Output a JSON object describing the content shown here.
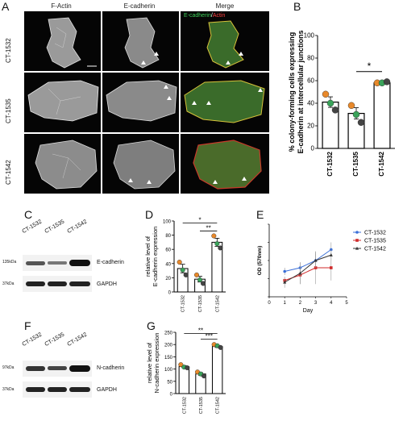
{
  "panels": {
    "A": "A",
    "B": "B",
    "C": "C",
    "D": "D",
    "E": "E",
    "F": "F",
    "G": "G"
  },
  "microscopy": {
    "columns": [
      "F-Actin",
      "E-cadherin",
      "Merge"
    ],
    "rows": [
      "CT-1532",
      "CT-1535",
      "CT-1542"
    ],
    "merge_legend": {
      "green": "E-cadherin",
      "slash": "/",
      "red": "Actin"
    }
  },
  "colors": {
    "orange": "#e8892b",
    "green": "#3aa35a",
    "dark": "#444444",
    "blue": "#3a6fd8",
    "red": "#d02a2a",
    "grey": "#333333"
  },
  "chart_B": {
    "type": "bar",
    "ylabel_line1": "% colony-forming cells expressing",
    "ylabel_line2": "E-cadherin at intercellular junctions",
    "categories": [
      "CT-1532",
      "CT-1535",
      "CT-1542"
    ],
    "values": [
      41,
      31,
      58
    ],
    "points": [
      [
        48,
        40,
        34
      ],
      [
        38,
        30,
        23
      ],
      [
        58,
        58,
        59
      ]
    ],
    "ylim": [
      0,
      100
    ],
    "yticks": [
      "0",
      "20",
      "40",
      "60",
      "80",
      "100"
    ],
    "significance": "*"
  },
  "chart_D": {
    "type": "bar",
    "ylabel_line1": "relative level of",
    "ylabel_line2": "E-cadherin expression",
    "categories": [
      "CT-1532",
      "CT-1535",
      "CT-1542"
    ],
    "values": [
      33,
      18,
      70
    ],
    "points": [
      [
        42,
        31,
        24
      ],
      [
        24,
        17,
        12
      ],
      [
        79,
        68,
        62
      ]
    ],
    "ylim": [
      0,
      100
    ],
    "yticks": [
      "0",
      "20",
      "40",
      "60",
      "80",
      "100"
    ],
    "sig1": "*",
    "sig2": "**"
  },
  "chart_G": {
    "type": "bar",
    "ylabel_line1": "relative level of",
    "ylabel_line2": "N-cadherin expression",
    "categories": [
      "CT-1532",
      "CT-1535",
      "CT-1542"
    ],
    "values": [
      110,
      80,
      192
    ],
    "points": [
      [
        118,
        108,
        105
      ],
      [
        88,
        80,
        72
      ],
      [
        200,
        195,
        188
      ]
    ],
    "ylim": [
      0,
      250
    ],
    "yticks": [
      "0",
      "50",
      "100",
      "150",
      "200",
      "250"
    ],
    "sig1": "**",
    "sig2": "***"
  },
  "chart_E": {
    "type": "line",
    "ylabel": "OD (570nm)",
    "xlabel": "Day",
    "x": [
      1,
      2,
      3,
      4
    ],
    "xlim": [
      0,
      5
    ],
    "ylim": [
      0,
      0.4
    ],
    "xticks": [
      "0",
      "1",
      "2",
      "3",
      "4",
      "5"
    ],
    "yticks": [
      "0.0",
      "0.1",
      "0.2",
      "0.3",
      "0.4"
    ],
    "series": [
      {
        "name": "CT-1532",
        "values": [
          0.14,
          0.16,
          0.2,
          0.26
        ],
        "color": "#3a6fd8"
      },
      {
        "name": "CT-1535",
        "values": [
          0.09,
          0.12,
          0.16,
          0.16
        ],
        "color": "#d02a2a"
      },
      {
        "name": "CT-1542",
        "values": [
          0.08,
          0.13,
          0.2,
          0.23
        ],
        "color": "#333333"
      }
    ]
  },
  "blot_C": {
    "lanes": [
      "CT-1532",
      "CT-1535",
      "CT-1542"
    ],
    "mw1": "135kDa",
    "mw2": "37kDa",
    "protein1": "E-cadherin",
    "protein2": "GAPDH"
  },
  "blot_F": {
    "lanes": [
      "CT-1532",
      "CT-1535",
      "CT-1542"
    ],
    "mw1": "97kDa",
    "mw2": "37kDa",
    "protein1": "N-cadherin",
    "protein2": "GAPDH"
  }
}
